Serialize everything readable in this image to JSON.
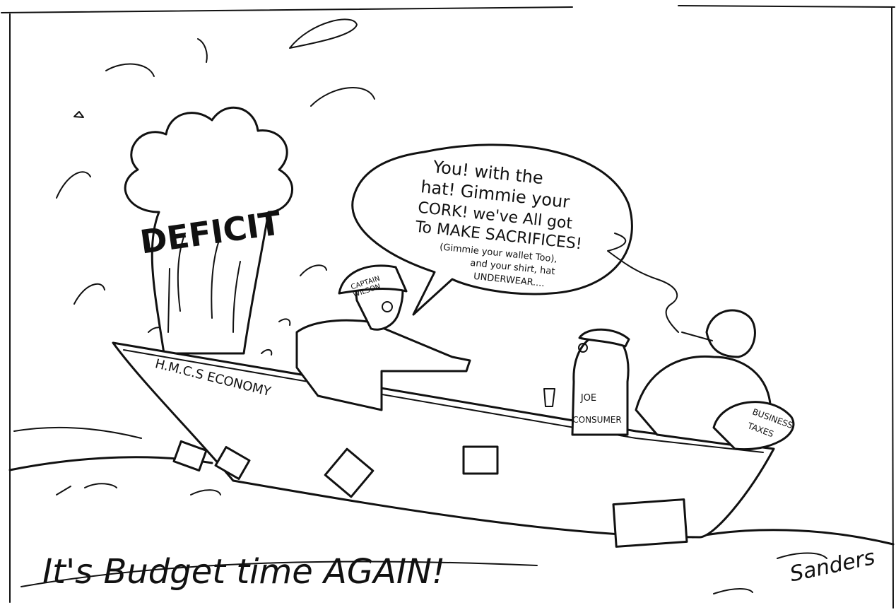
{
  "title_text": "DEFICIT",
  "speech_lines": [
    "You! with the",
    "hat! Gimmie your",
    "CORK! we've All got",
    "To MAKE SACRIFICES!",
    "(Gimmie your wallet Too),",
    "and your shirt, hat",
    "UNDERWEAR...."
  ],
  "captain_hat_line1": "CAPTAIN",
  "captain_hat_line2": "WILSON",
  "boat_name": "H.M.C.S ECONOMY",
  "joe_line1": "JOE",
  "joe_line2": "CONSUMER",
  "business_line1": "BUSINESS",
  "business_line2": "TAXES",
  "caption": "It's Budget time AGAIN!",
  "signature": "Sanders",
  "icons": {
    "geyser": "water-geyser-icon",
    "boat": "sinking-boat-icon"
  }
}
